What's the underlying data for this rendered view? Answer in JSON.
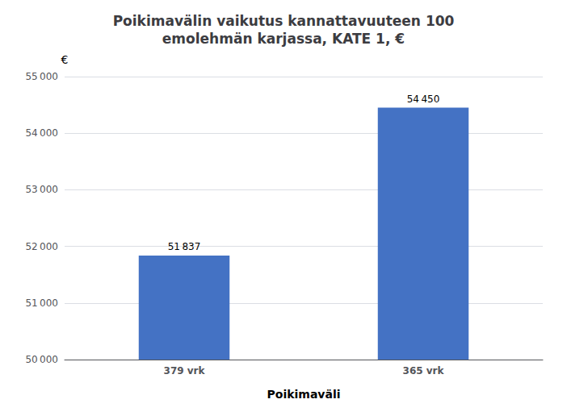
{
  "chart_data": {
    "type": "bar",
    "title": "Poikimavälin vaikutus kannattavuuteen 100\nemolehmän karjassa, KATE 1, €",
    "categories": [
      "379 vrk",
      "365 vrk"
    ],
    "values": [
      51837,
      54450
    ],
    "value_labels": [
      "51 837",
      "54 450"
    ],
    "data_labels": true,
    "color": "#4472C4",
    "xlabel": "Poikimaväli",
    "ylabel": "€",
    "ylim": [
      50000,
      55000
    ],
    "yticks": [
      {
        "value": 50000,
        "label": "50 000"
      },
      {
        "value": 51000,
        "label": "51 000"
      },
      {
        "value": 52000,
        "label": "52 000"
      },
      {
        "value": 53000,
        "label": "53 000"
      },
      {
        "value": 54000,
        "label": "54 000"
      },
      {
        "value": 55000,
        "label": "55 000"
      }
    ],
    "grid": true
  }
}
